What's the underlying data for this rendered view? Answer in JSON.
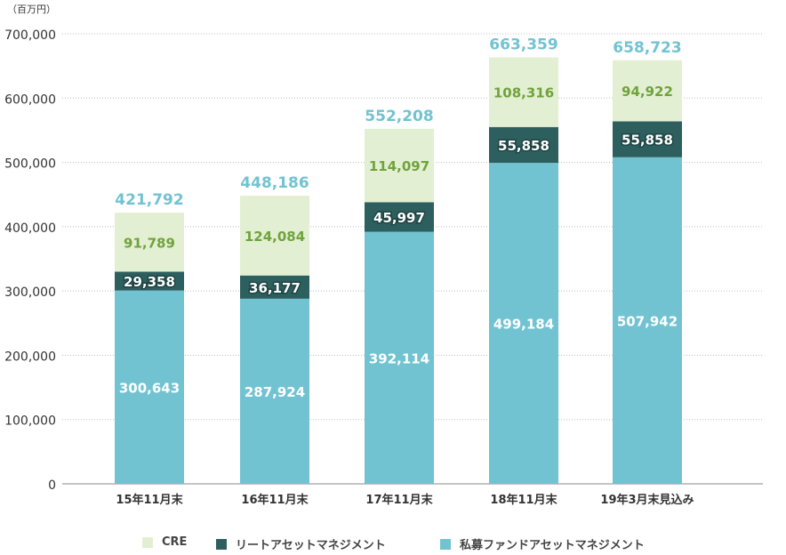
{
  "chart_data": {
    "type": "bar",
    "stacked": true,
    "unit_label": "（百万円）",
    "categories": [
      "15年11月末",
      "16年11月末",
      "17年11月末",
      "18年11月末",
      "19年3月末見込み"
    ],
    "series": [
      {
        "name": "私募ファンドアセットマネジメント",
        "color": "#72C3D1",
        "label_color": "#ffffff",
        "values": [
          300643,
          287924,
          392114,
          499184,
          507942
        ]
      },
      {
        "name": "リートアセットマネジメント",
        "color": "#2D5F5F",
        "label_color": "#ffffff",
        "values": [
          29358,
          36177,
          45997,
          55858,
          55858
        ]
      },
      {
        "name": "CRE",
        "color": "#E3EFD2",
        "label_color": "#6FA33C",
        "values": [
          91789,
          124084,
          114097,
          108316,
          94922
        ]
      }
    ],
    "totals": [
      421792,
      448186,
      552208,
      663359,
      658723
    ],
    "total_label_color": "#72C3D1",
    "ylim": [
      0,
      700000
    ],
    "yticks": [
      0,
      100000,
      200000,
      300000,
      400000,
      500000,
      600000,
      700000
    ],
    "ytick_labels": [
      "0",
      "100,000",
      "200,000",
      "300,000",
      "400,000",
      "500,000",
      "600,000",
      "700,000"
    ],
    "grid": true,
    "legend_position": "bottom",
    "legend_order": [
      "CRE",
      "リートアセットマネジメント",
      "私募ファンドアセットマネジメント"
    ]
  }
}
